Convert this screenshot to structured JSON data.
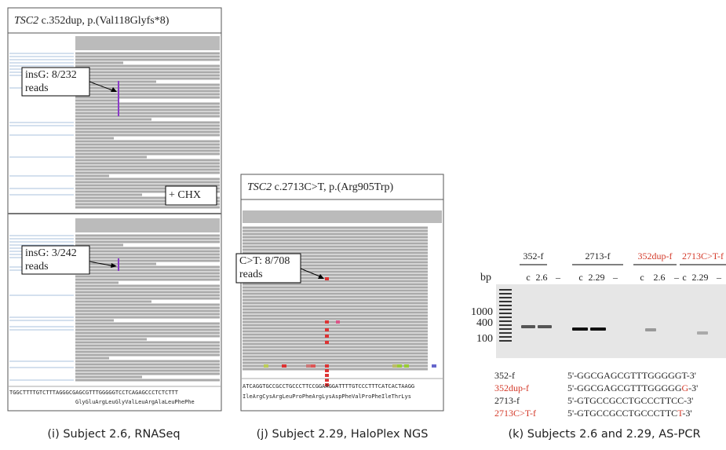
{
  "panels": [
    {
      "title_gene": "TSC2",
      "title_rest": " c.352dup, p.(Val118Glyfs*8)",
      "annotation_top": [
        "insG: 8/232",
        "reads"
      ],
      "treatment": "+ CHX",
      "annotation_bottom": [
        "insG: 3/242",
        "reads"
      ],
      "sequence": "TGGCTTTTGTCTTTAGGGCGAGCGTTTGGGGGTCCTCAGAGCCCTCTCTTT",
      "protein": "GlyGluArgLeuGlyValLeuArgAlaLeuPhePhe",
      "caption": "(i) Subject 2.6, RNASeq"
    },
    {
      "title_gene": "TSC2",
      "title_rest": " c.2713C>T, p.(Arg905Trp)",
      "annotation": [
        "C>T: 8/708",
        "reads"
      ],
      "sequence": "ATCAGGTGCCGCCTGCCCTTCCGGAAGGATTTTGTCCCTTTCATCACTAAGG",
      "protein": "IleArgCysArgLeuProPheArgLysAspPheValProPheIleThrLys",
      "caption": "(j) Subject 2.29, HaloPlex NGS"
    },
    {
      "primers": [
        "352-f",
        "2713-f",
        "352dup-f",
        "2713C>T-f"
      ],
      "size_unit": "bp",
      "lanes": [
        [
          "c",
          "2.6",
          "–"
        ],
        [
          "c",
          "2.29",
          "–"
        ],
        [
          "c",
          "2.6",
          "–"
        ],
        [
          "c",
          "2.29",
          "–"
        ]
      ],
      "ladder": [
        "1000",
        "400",
        "100"
      ],
      "table": [
        {
          "name": "352-f",
          "seq": [
            "5'-GGCGAGCGTTTGGGGGT-3'"
          ]
        },
        {
          "name": "352dup-f",
          "seq": [
            "5'-GGCGAGCGTTTGGGGG",
            "G",
            "-3'"
          ]
        },
        {
          "name": "2713-f",
          "seq": [
            "5'-GTGCCGCCTGCCCTTCC-3'"
          ]
        },
        {
          "name": "2713C>T-f",
          "seq": [
            "5'-GTGCCGCCTGCCCTTC",
            "T",
            "-3'"
          ]
        }
      ],
      "caption": "(k) Subjects 2.6 and 2.29, AS-PCR"
    }
  ]
}
